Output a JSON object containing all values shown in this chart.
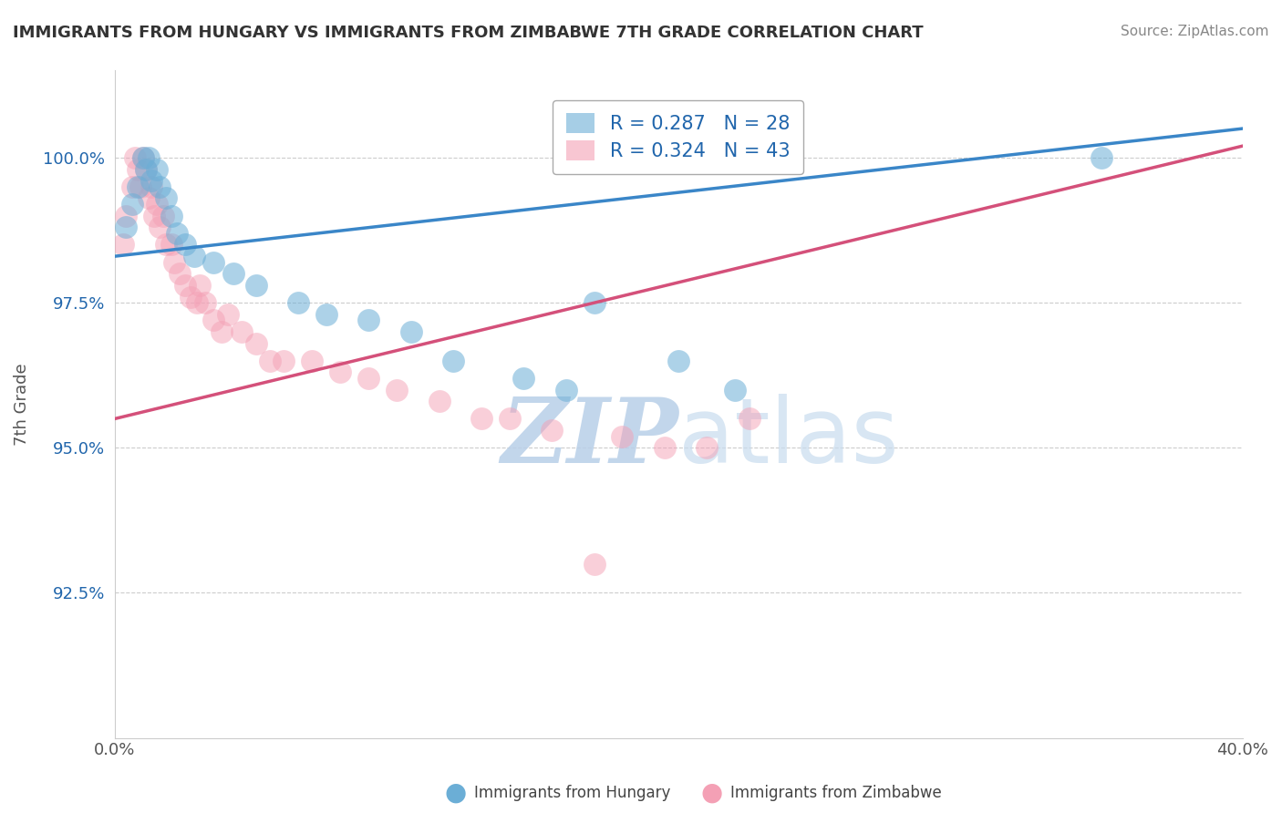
{
  "title": "IMMIGRANTS FROM HUNGARY VS IMMIGRANTS FROM ZIMBABWE 7TH GRADE CORRELATION CHART",
  "source": "Source: ZipAtlas.com",
  "ylabel": "7th Grade",
  "legend_hungary": "R = 0.287   N = 28",
  "legend_zimbabwe": "R = 0.324   N = 43",
  "hungary_color": "#6baed6",
  "zimbabwe_color": "#f4a0b5",
  "hungary_line_color": "#3a86c8",
  "zimbabwe_line_color": "#d4507a",
  "hungary_scatter_x": [
    0.4,
    0.6,
    0.8,
    1.0,
    1.1,
    1.2,
    1.3,
    1.5,
    1.6,
    1.8,
    2.0,
    2.2,
    2.5,
    2.8,
    3.5,
    4.2,
    5.0,
    6.5,
    7.5,
    9.0,
    10.5,
    12.0,
    14.5,
    16.0,
    17.0,
    20.0,
    22.0,
    35.0
  ],
  "hungary_scatter_y": [
    98.8,
    99.2,
    99.5,
    100.0,
    99.8,
    100.0,
    99.6,
    99.8,
    99.5,
    99.3,
    99.0,
    98.7,
    98.5,
    98.3,
    98.2,
    98.0,
    97.8,
    97.5,
    97.3,
    97.2,
    97.0,
    96.5,
    96.2,
    96.0,
    97.5,
    96.5,
    96.0,
    100.0
  ],
  "zimbabwe_scatter_x": [
    0.3,
    0.4,
    0.6,
    0.7,
    0.8,
    0.9,
    1.0,
    1.1,
    1.2,
    1.3,
    1.4,
    1.5,
    1.6,
    1.7,
    1.8,
    2.0,
    2.1,
    2.3,
    2.5,
    2.7,
    2.9,
    3.0,
    3.2,
    3.5,
    3.8,
    4.0,
    4.5,
    5.0,
    5.5,
    6.0,
    7.0,
    8.0,
    9.0,
    10.0,
    11.5,
    13.0,
    14.0,
    15.5,
    17.0,
    18.0,
    19.5,
    21.0,
    22.5
  ],
  "zimbabwe_scatter_y": [
    98.5,
    99.0,
    99.5,
    100.0,
    99.8,
    99.5,
    100.0,
    99.8,
    99.3,
    99.5,
    99.0,
    99.2,
    98.8,
    99.0,
    98.5,
    98.5,
    98.2,
    98.0,
    97.8,
    97.6,
    97.5,
    97.8,
    97.5,
    97.2,
    97.0,
    97.3,
    97.0,
    96.8,
    96.5,
    96.5,
    96.5,
    96.3,
    96.2,
    96.0,
    95.8,
    95.5,
    95.5,
    95.3,
    93.0,
    95.2,
    95.0,
    95.0,
    95.5
  ],
  "xlim": [
    0.0,
    40.0
  ],
  "ylim": [
    90.0,
    101.5
  ],
  "y_ticks": [
    92.5,
    95.0,
    97.5,
    100.0
  ],
  "y_tick_labels": [
    "92.5%",
    "95.0%",
    "97.5%",
    "100.0%"
  ],
  "hungary_line_x0": 0.0,
  "hungary_line_y0": 98.3,
  "hungary_line_x1": 40.0,
  "hungary_line_y1": 100.5,
  "zimbabwe_line_x0": 0.0,
  "zimbabwe_line_y0": 95.5,
  "zimbabwe_line_x1": 40.0,
  "zimbabwe_line_y1": 100.2,
  "watermark_zip": "ZIP",
  "watermark_atlas": "atlas",
  "watermark_color": "#ccddef"
}
